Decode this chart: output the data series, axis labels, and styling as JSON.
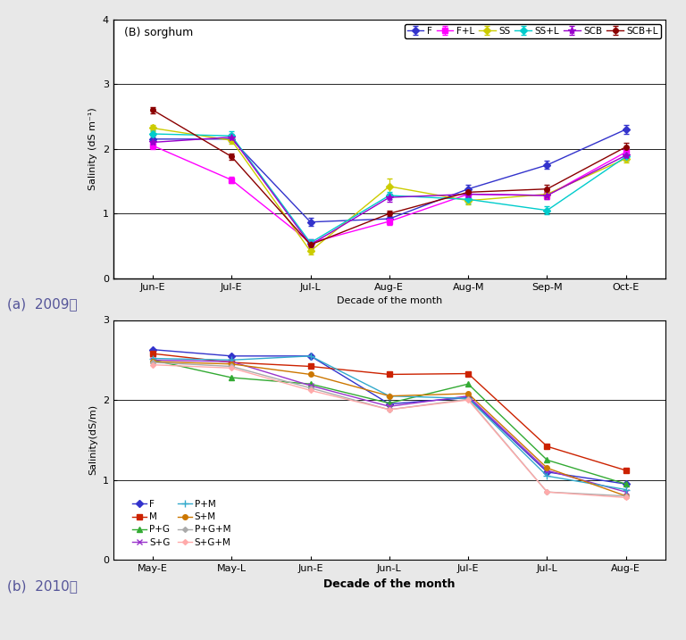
{
  "chart_a": {
    "title": "(B) sorghum",
    "xlabel": "Decade of the month",
    "ylabel": "Salinity (dS m⁻¹)",
    "xticks": [
      "Jun-E",
      "Jul-E",
      "Jul-L",
      "Aug-E",
      "Aug-M",
      "Sep-M",
      "Oct-E"
    ],
    "ylim": [
      0,
      4
    ],
    "yticks": [
      0,
      1,
      2,
      3,
      4
    ],
    "series": [
      {
        "label": "F",
        "color": "#3333cc",
        "marker": "D",
        "markersize": 4,
        "values": [
          2.15,
          2.15,
          0.87,
          0.92,
          1.38,
          1.75,
          2.3
        ],
        "yerr": [
          0.05,
          0.05,
          0.06,
          0.08,
          0.07,
          0.06,
          0.07
        ]
      },
      {
        "label": "F+L",
        "color": "#ff00ff",
        "marker": "s",
        "markersize": 4,
        "values": [
          2.05,
          1.52,
          0.55,
          0.88,
          1.3,
          1.28,
          1.95
        ],
        "yerr": [
          0.05,
          0.05,
          0.05,
          0.06,
          0.06,
          0.05,
          0.06
        ]
      },
      {
        "label": "SS",
        "color": "#cccc00",
        "marker": "D",
        "markersize": 4,
        "values": [
          2.32,
          2.13,
          0.42,
          1.42,
          1.2,
          1.3,
          1.85
        ],
        "yerr": [
          0.05,
          0.05,
          0.05,
          0.12,
          0.06,
          0.05,
          0.06
        ]
      },
      {
        "label": "SS+L",
        "color": "#00cccc",
        "marker": "D",
        "markersize": 4,
        "values": [
          2.23,
          2.2,
          0.55,
          1.28,
          1.22,
          1.05,
          1.88
        ],
        "yerr": [
          0.05,
          0.07,
          0.05,
          0.06,
          0.06,
          0.06,
          0.06
        ]
      },
      {
        "label": "SCB",
        "color": "#9900cc",
        "marker": "*",
        "markersize": 6,
        "values": [
          2.1,
          2.18,
          0.52,
          1.25,
          1.3,
          1.28,
          1.9
        ],
        "yerr": [
          0.05,
          0.05,
          0.05,
          0.06,
          0.06,
          0.05,
          0.06
        ]
      },
      {
        "label": "SCB+L",
        "color": "#8B0000",
        "marker": "o",
        "markersize": 4,
        "values": [
          2.6,
          1.88,
          0.52,
          1.0,
          1.33,
          1.38,
          2.03
        ],
        "yerr": [
          0.05,
          0.05,
          0.05,
          0.04,
          0.05,
          0.07,
          0.06
        ]
      }
    ]
  },
  "chart_b": {
    "xlabel": "Decade of the month",
    "ylabel": "Salinity(dS/m)",
    "xticks": [
      "May-E",
      "May-L",
      "Jun-E",
      "Jun-L",
      "Jul-E",
      "Jul-L",
      "Aug-E"
    ],
    "ylim": [
      0,
      3
    ],
    "yticks": [
      0,
      1,
      2,
      3
    ],
    "series": [
      {
        "label": "F",
        "color": "#3333cc",
        "marker": "D",
        "markersize": 4,
        "values": [
          2.63,
          2.55,
          2.55,
          1.95,
          2.03,
          1.1,
          0.95
        ]
      },
      {
        "label": "M",
        "color": "#cc2200",
        "marker": "s",
        "markersize": 4,
        "values": [
          2.58,
          2.47,
          2.42,
          2.32,
          2.33,
          1.42,
          1.12
        ]
      },
      {
        "label": "P+G",
        "color": "#33aa33",
        "marker": "^",
        "markersize": 4,
        "values": [
          2.5,
          2.28,
          2.2,
          1.96,
          2.2,
          1.25,
          0.95
        ]
      },
      {
        "label": "S+G",
        "color": "#9933cc",
        "marker": "x",
        "markersize": 5,
        "values": [
          2.5,
          2.48,
          2.18,
          1.92,
          2.05,
          1.12,
          0.85
        ]
      },
      {
        "label": "P+M",
        "color": "#33aacc",
        "marker": "+",
        "markersize": 6,
        "values": [
          2.52,
          2.5,
          2.55,
          2.05,
          2.02,
          1.05,
          0.88
        ]
      },
      {
        "label": "S+M",
        "color": "#cc7700",
        "marker": "o",
        "markersize": 4,
        "values": [
          2.48,
          2.45,
          2.32,
          2.05,
          2.08,
          1.15,
          0.8
        ]
      },
      {
        "label": "P+G+M",
        "color": "#aaaaaa",
        "marker": "D",
        "markersize": 3,
        "values": [
          2.47,
          2.42,
          2.15,
          1.88,
          2.01,
          0.85,
          0.8
        ]
      },
      {
        "label": "S+G+M",
        "color": "#ffaaaa",
        "marker": "D",
        "markersize": 3,
        "values": [
          2.44,
          2.4,
          2.12,
          1.88,
          2.0,
          0.85,
          0.78
        ]
      }
    ]
  },
  "label_a": "(a)  2009년",
  "label_b": "(b)  2010년",
  "bg_color": "#f0f0f0"
}
